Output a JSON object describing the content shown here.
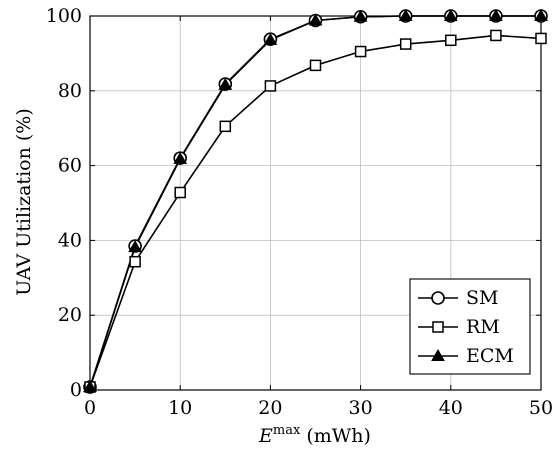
{
  "chart_data": {
    "type": "line",
    "title": "",
    "xlabel": {
      "symbol": "E",
      "superscript": "max",
      "unit": "(mWh)"
    },
    "ylabel": "UAV Utilization (%)",
    "xlim": [
      0,
      50
    ],
    "ylim": [
      0,
      100
    ],
    "xticks": [
      0,
      10,
      20,
      30,
      40,
      50
    ],
    "yticks": [
      0,
      20,
      40,
      60,
      80,
      100
    ],
    "grid": true,
    "legend_position": "bottom-right",
    "x": [
      0,
      5,
      10,
      15,
      20,
      25,
      30,
      35,
      40,
      45,
      50
    ],
    "series": [
      {
        "name": "SM",
        "marker": "circle",
        "values": [
          0.8,
          38.5,
          62.0,
          81.8,
          93.8,
          98.8,
          99.8,
          100,
          100,
          100,
          100
        ]
      },
      {
        "name": "RM",
        "marker": "square",
        "values": [
          0.8,
          34.3,
          52.8,
          70.5,
          81.3,
          86.8,
          90.5,
          92.5,
          93.5,
          94.8,
          94.0
        ]
      },
      {
        "name": "ECM",
        "marker": "triangle",
        "values": [
          0.8,
          38.2,
          61.8,
          81.6,
          93.6,
          98.8,
          99.8,
          100,
          100,
          100,
          100
        ]
      }
    ],
    "colors": {
      "line": "#000000",
      "grid": "#c0c0c0",
      "background": "#ffffff"
    }
  }
}
